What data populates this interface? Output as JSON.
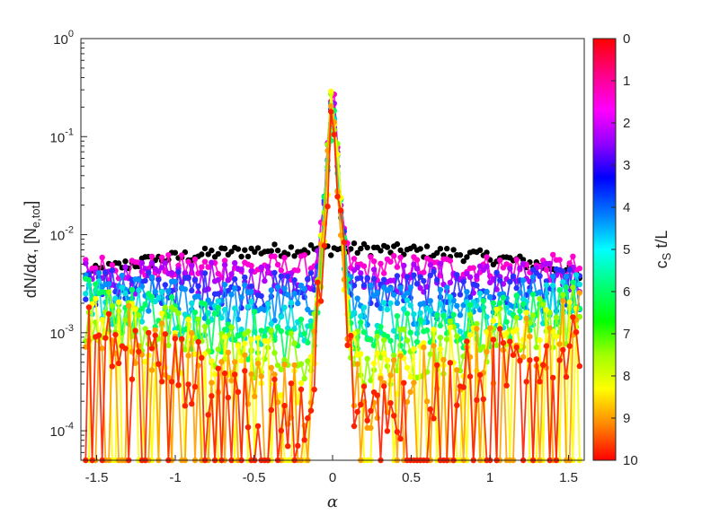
{
  "chart_data": {
    "type": "scatter",
    "title": "",
    "xlabel": "α",
    "ylabel": {
      "pre": "dN/d",
      "greek": "α",
      "mid": ", [N",
      "sub": "e,tot",
      "post": "]"
    },
    "x_range": [
      -1.6,
      1.6
    ],
    "y_range": [
      5e-05,
      1
    ],
    "y_scale": "log",
    "x_ticks": [
      "-1.5",
      "-1",
      "-0.5",
      "0",
      "0.5",
      "1",
      "1.5"
    ],
    "x_tick_values": [
      -1.5,
      -1,
      -0.5,
      0,
      0.5,
      1,
      1.5
    ],
    "y_ticks": [
      {
        "base": "10",
        "exp": "0",
        "value": 1
      },
      {
        "base": "10",
        "exp": "-1",
        "value": 0.1
      },
      {
        "base": "10",
        "exp": "-2",
        "value": 0.01
      },
      {
        "base": "10",
        "exp": "-3",
        "value": 0.001
      },
      {
        "base": "10",
        "exp": "-4",
        "value": 0.0001
      }
    ],
    "colorbar": {
      "label_main": "c",
      "label_sub": "S",
      "label_rest": " t/L",
      "ticks": [
        "0",
        "1",
        "2",
        "3",
        "4",
        "5",
        "6",
        "7",
        "8",
        "9",
        "10"
      ],
      "range": [
        0,
        10
      ],
      "colormap": "hsv-reversed"
    },
    "series": [
      {
        "t": 0,
        "color": "#000000",
        "plateau": 0.0072,
        "center_peak": 0.0072,
        "edge_ratio": 0.55
      },
      {
        "t": 1,
        "color": "#ff00d0",
        "plateau": 0.0046,
        "center_peak": 0.35,
        "edge_ratio": 1.0
      },
      {
        "t": 2,
        "color": "#b000ff",
        "plateau": 0.0036,
        "center_peak": 0.33,
        "edge_ratio": 1.0
      },
      {
        "t": 3,
        "color": "#2a30ff",
        "plateau": 0.0027,
        "center_peak": 0.32,
        "edge_ratio": 1.1
      },
      {
        "t": 4,
        "color": "#0090ff",
        "plateau": 0.0019,
        "center_peak": 0.31,
        "edge_ratio": 1.4
      },
      {
        "t": 5,
        "color": "#00e0e0",
        "plateau": 0.0012,
        "center_peak": 0.3,
        "edge_ratio": 1.9
      },
      {
        "t": 6,
        "color": "#00ff60",
        "plateau": 0.0008,
        "center_peak": 0.29,
        "edge_ratio": 2.5
      },
      {
        "t": 7,
        "color": "#90ff00",
        "plateau": 0.0005,
        "center_peak": 0.28,
        "edge_ratio": 3.2
      },
      {
        "t": 8,
        "color": "#ffff00",
        "plateau": 0.00033,
        "center_peak": 0.27,
        "edge_ratio": 4.5
      },
      {
        "t": 9,
        "color": "#ffa000",
        "plateau": 0.0002,
        "center_peak": 0.26,
        "edge_ratio": 6.0
      },
      {
        "t": 10,
        "color": "#ff2000",
        "plateau": 0.00013,
        "center_peak": 0.25,
        "edge_ratio": 7.0
      }
    ]
  }
}
